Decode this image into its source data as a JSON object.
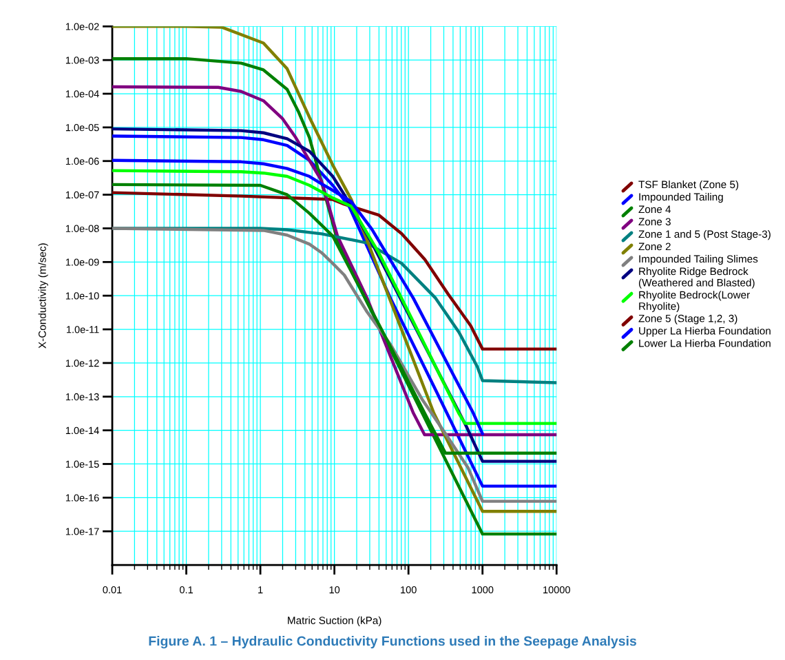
{
  "chart_data": {
    "type": "line",
    "title": "Figure A. 1 – Hydraulic Conductivity Functions used in the Seepage Analysis",
    "xlabel": "Matric Suction (kPa)",
    "ylabel": "X-Conductivity (m/sec)",
    "log": "xy",
    "grid": true,
    "legend": "right",
    "marker": "none",
    "line_style": "solid",
    "xlim": [
      0.01,
      10000
    ],
    "xticks": [
      0.01,
      0.1,
      1,
      10,
      100,
      1000,
      10000
    ],
    "ylim": [
      1e-18,
      0.01
    ],
    "yticks": [
      {
        "value": 0.01,
        "label": "1.0e-02"
      },
      {
        "value": 0.001,
        "label": "1.0e-03"
      },
      {
        "value": 0.0001,
        "label": "1.0e-04"
      },
      {
        "value": 1e-05,
        "label": "1.0e-05"
      },
      {
        "value": 1e-06,
        "label": "1.0e-06"
      },
      {
        "value": 1e-07,
        "label": "1.0e-07"
      },
      {
        "value": 1e-08,
        "label": "1.0e-08"
      },
      {
        "value": 1e-09,
        "label": "1.0e-09"
      },
      {
        "value": 1e-10,
        "label": "1.0e-10"
      },
      {
        "value": 1e-11,
        "label": "1.0e-11"
      },
      {
        "value": 1e-12,
        "label": "1.0e-12"
      },
      {
        "value": 1e-13,
        "label": "1.0e-13"
      },
      {
        "value": 1e-14,
        "label": "1.0e-14"
      },
      {
        "value": 1e-15,
        "label": "1.0e-15"
      },
      {
        "value": 1e-16,
        "label": "1.0e-16"
      },
      {
        "value": 1e-17,
        "label": "1.0e-17"
      }
    ],
    "series": [
      {
        "name": "TSF Blanket (Zone 5)",
        "color": "#800000",
        "x": [
          0.01,
          0.55,
          9.5,
          13.6,
          39.6,
          81,
          166,
          340,
          690,
          1000,
          10000
        ],
        "values": [
          1.15e-07,
          9.1e-08,
          7.2e-08,
          5.2e-08,
          2.5e-08,
          6.9e-09,
          1.2e-09,
          1.15e-10,
          1.3e-11,
          2.6e-12,
          2.6e-12
        ]
      },
      {
        "name": "Impounded Tailing",
        "color": "#0000ff",
        "x": [
          0.01,
          0.55,
          1.1,
          2.3,
          4.6,
          9.5,
          15.8,
          57,
          232,
          1000,
          10000
        ],
        "values": [
          5.5e-06,
          5e-06,
          4.3e-06,
          2.9e-06,
          1.05e-06,
          1.9e-07,
          4.5e-08,
          8.5e-11,
          1.6e-13,
          2.2e-16,
          2.2e-16
        ]
      },
      {
        "name": "Zone 4",
        "color": "#008000",
        "x": [
          0.01,
          0.1,
          0.55,
          1.1,
          2.3,
          3.3,
          4.6,
          11,
          18.2,
          1000,
          10000
        ],
        "values": [
          0.0011,
          0.0011,
          0.00081,
          0.00051,
          0.000135,
          2.8e-05,
          5e-06,
          4.3e-09,
          4e-10,
          8.3e-18,
          8.3e-18
        ]
      },
      {
        "name": "Zone 3",
        "color": "#800080",
        "x": [
          0.01,
          0.27,
          0.55,
          1.1,
          2,
          3,
          6.7,
          11,
          27.6,
          57,
          116,
          165,
          10000
        ],
        "values": [
          0.00016,
          0.000155,
          0.000117,
          6.2e-05,
          1.8e-05,
          5e-06,
          2.6e-07,
          5.9e-09,
          8.5e-11,
          1.6e-12,
          3.3e-14,
          7.4e-15,
          7.4e-15
        ]
      },
      {
        "name": "Zone 1 and 5 (Post Stage-3)",
        "color": "#008080",
        "x": [
          0.01,
          1,
          2.3,
          6.7,
          27.6,
          81,
          232,
          482,
          850,
          1000,
          10000
        ],
        "values": [
          1e-08,
          1e-08,
          9.1e-09,
          6.9e-09,
          3.7e-09,
          9.1e-10,
          8.5e-11,
          8.1e-12,
          7.8e-13,
          3e-13,
          2.6e-13
        ]
      },
      {
        "name": "Zone 2",
        "color": "#808000",
        "x": [
          0.01,
          0.1,
          0.3,
          1.1,
          2.3,
          4.6,
          9.5,
          16.9,
          221,
          1000,
          10000
        ],
        "values": [
          0.01,
          0.01,
          0.0095,
          0.0032,
          0.00055,
          2e-05,
          7.6e-07,
          7.2e-08,
          3.2e-14,
          3.9e-17,
          3.9e-17
        ]
      },
      {
        "name": "Impounded Tailing Slimes",
        "color": "#808080",
        "x": [
          0.01,
          1.1,
          2.3,
          4.6,
          6.7,
          9.5,
          13.6,
          27.6,
          57,
          152,
          316,
          640,
          1000,
          10000
        ],
        "values": [
          1e-08,
          8.7e-09,
          6.3e-09,
          3.4e-09,
          1.9e-09,
          9.1e-10,
          4.1e-10,
          3.3e-11,
          3.6e-12,
          8.5e-14,
          7.9e-15,
          7.6e-16,
          7.8e-17,
          7.8e-17
        ]
      },
      {
        "name": "Rhyolite Ridge Bedrock (Weathered and Blasted)",
        "color": "#000080",
        "x": [
          0.01,
          0.55,
          1.1,
          2.3,
          4.6,
          9.5,
          13.6,
          32,
          605,
          1000,
          10000
        ],
        "values": [
          9e-06,
          8e-06,
          6.9e-06,
          4.6e-06,
          1.95e-06,
          3.5e-07,
          1e-07,
          3.7e-09,
          1.3e-14,
          1.2e-15,
          1.2e-15
        ]
      },
      {
        "name": "Rhyolite Bedrock(Lower Rhyolite)",
        "color": "#00ff00",
        "x": [
          0.01,
          0.55,
          1.1,
          2.3,
          4.6,
          9.5,
          16.9,
          39.6,
          116,
          475,
          580,
          10000
        ],
        "values": [
          5.2e-07,
          4.8e-07,
          4.4e-07,
          3.5e-07,
          1.9e-07,
          8e-08,
          4.5e-08,
          1.9e-09,
          1.7e-11,
          3.3e-14,
          1.6e-14,
          1.6e-14
        ]
      },
      {
        "name": "Zone 5 (Stage 1,2, 3)",
        "color": "#800000"
      },
      {
        "name": "Upper La Hierba Foundation",
        "color": "#0000ff",
        "x": [
          0.01,
          0.55,
          1.1,
          2.3,
          4.6,
          6.7,
          9.5,
          16.9,
          32,
          116,
          748,
          1000
        ],
        "values": [
          1.05e-06,
          9.5e-07,
          8.3e-07,
          6e-07,
          3.5e-07,
          2.1e-07,
          1.35e-07,
          6.2e-08,
          9.5e-09,
          8.5e-11,
          3.3e-14,
          7.9e-15
        ]
      },
      {
        "name": "Lower La Hierba Foundation",
        "color": "#008000",
        "x": [
          0.01,
          1,
          2.3,
          4.6,
          9.5,
          39.6,
          166,
          316,
          10000
        ],
        "values": [
          2e-07,
          1.9e-07,
          1e-07,
          2.8e-08,
          5.9e-09,
          1.45e-11,
          3.2e-14,
          2.1e-15,
          2.1e-15
        ]
      }
    ]
  }
}
